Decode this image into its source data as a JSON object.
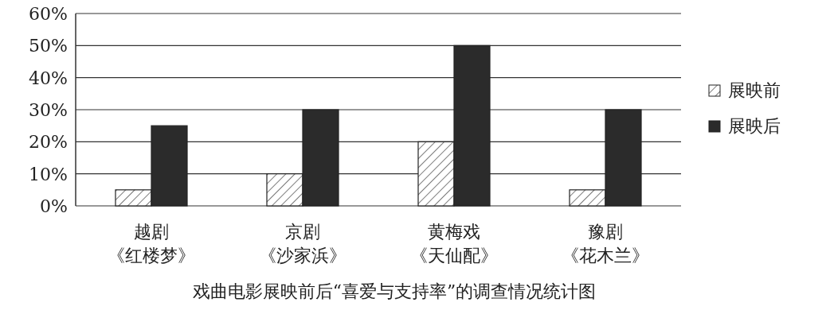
{
  "chart_data": {
    "type": "bar",
    "title": "戏曲电影展映前后“喜爱与支持率”的调查情况统计图",
    "categories": [
      "越剧《红楼梦》",
      "京剧《沙家浜》",
      "黄梅戏《天仙配》",
      "豫剧《花木兰》"
    ],
    "series": [
      {
        "name": "展映前",
        "color": "#222222",
        "values": [
          5,
          10,
          20,
          5
        ]
      },
      {
        "name": "展映后",
        "color": "#2b2b2b",
        "values": [
          25,
          30,
          50,
          30
        ]
      }
    ],
    "ylim": [
      0,
      60
    ],
    "yticks": [
      {
        "value": 0,
        "label": "0%"
      },
      {
        "value": 10,
        "label": "10%"
      },
      {
        "value": 20,
        "label": "20%"
      },
      {
        "value": 30,
        "label": "30%"
      },
      {
        "value": 40,
        "label": "40%"
      },
      {
        "value": 50,
        "label": "50%"
      },
      {
        "value": 60,
        "label": "60%"
      }
    ],
    "grid": "y",
    "legend": "right"
  }
}
